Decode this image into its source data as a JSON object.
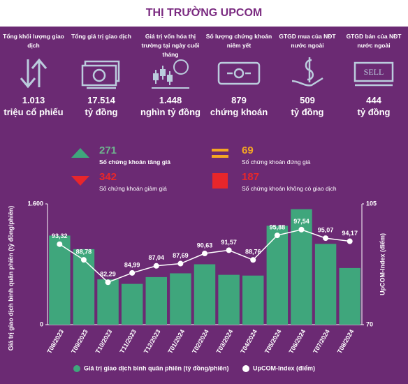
{
  "header": {
    "title": "THỊ TRƯỜNG UPCOM"
  },
  "stats": [
    {
      "label": "Tổng khối lượng giao dịch",
      "value": "1.013",
      "unit": "triệu cổ phiếu"
    },
    {
      "label": "Tổng giá trị giao dịch",
      "value": "17.514",
      "unit": "tỷ đồng"
    },
    {
      "label": "Giá trị vốn hóa thị trường tại ngày cuối tháng",
      "value": "1.448",
      "unit": "nghìn tỷ đồng"
    },
    {
      "label": "Số lượng chứng khoán niêm yết",
      "value": "879",
      "unit": "chứng khoán"
    },
    {
      "label": "GTGD mua của NĐT nước ngoài",
      "value": "509",
      "unit": "tỷ đồng"
    },
    {
      "label": "GTGD bán của NĐT nước ngoài",
      "value": "444",
      "unit": "tỷ đồng",
      "icon_text": "SELL"
    }
  ],
  "summary": [
    {
      "value": "271",
      "label": "Số chứng khoán tăng giá"
    },
    {
      "value": "69",
      "label": "Số chứng khoán đứng giá"
    },
    {
      "value": "342",
      "label": "Số chứng khoán giảm giá"
    },
    {
      "value": "187",
      "label": "Số chứng khoán không có giao dịch"
    }
  ],
  "chart_data": {
    "type": "bar-line",
    "categories": [
      "T08/2023",
      "T09/2023",
      "T10/2023",
      "T11/2023",
      "T12/2023",
      "T01/2024",
      "T02/2024",
      "T03/2024",
      "T04/2024",
      "T05/2024",
      "T06/2024",
      "T07/2024",
      "T08/2024"
    ],
    "series": [
      {
        "name": "Giá trị giao dịch bình quân phiên (tỷ đồng/phiên)",
        "color": "#3fa67c",
        "type": "bar",
        "values": [
          1180,
          1000,
          600,
          540,
          630,
          680,
          800,
          660,
          650,
          1310,
          1530,
          1070,
          750
        ]
      },
      {
        "name": "UpCOM-Index (điểm)",
        "color": "#ffffff",
        "type": "line",
        "axis": "y2",
        "values": [
          93.32,
          88.78,
          82.29,
          84.99,
          87.04,
          87.69,
          90.63,
          91.57,
          88.76,
          95.88,
          97.54,
          95.07,
          94.17
        ],
        "value_labels": [
          "93,32",
          "88,78",
          "82,29",
          "84,99",
          "87,04",
          "87,69",
          "90,63",
          "91,57",
          "88,76",
          "95,88",
          "97,54",
          "95,07",
          "94,17"
        ]
      }
    ],
    "ylabel": "Giá trị giao dịch bình quân phiên (tỷ đồng/phiên)",
    "y2label": "UpCOM-Index (điểm)",
    "ylim": [
      0,
      1600
    ],
    "yticks": [
      0,
      {
        "value": 1600,
        "label": "1.600"
      }
    ],
    "y2lim": [
      70,
      105
    ],
    "y2ticks": [
      70,
      105
    ]
  }
}
